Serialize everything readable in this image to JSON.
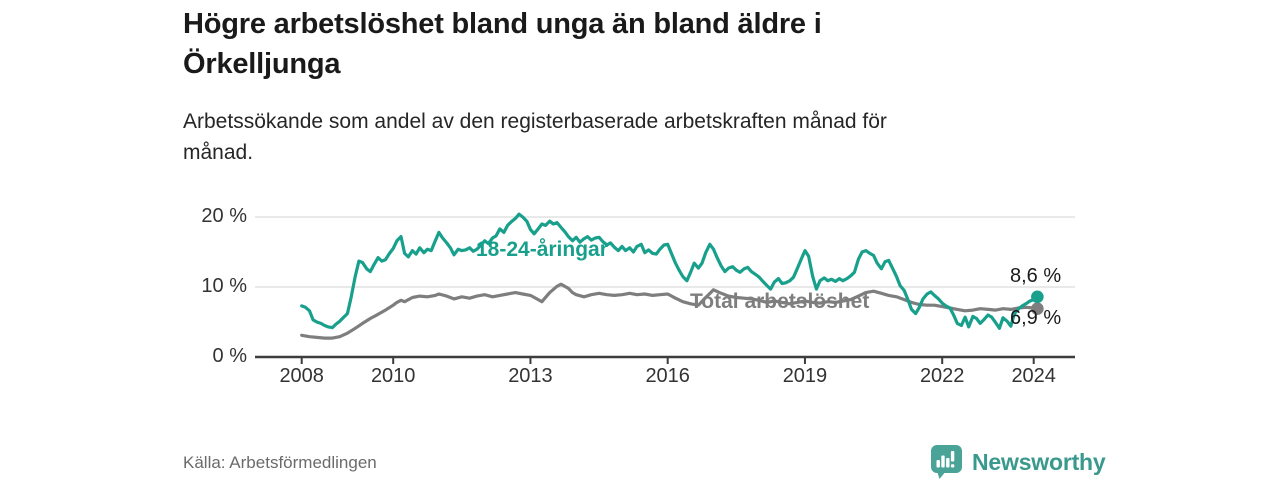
{
  "header": {
    "title_line1": "Högre arbetslöshet bland unga än bland äldre i",
    "title_line2": "Örkelljunga",
    "subtitle_line1": "Arbetssökande som andel av den registerbaserade arbetskraften månad för",
    "subtitle_line2": "månad."
  },
  "footer": {
    "source": "Källa: Arbetsförmedlingen",
    "brand": "Newsworthy",
    "brand_color": "#39998c"
  },
  "colors": {
    "young_line": "#18a08d",
    "total_line": "#7e7e7e",
    "grid": "#dcdcdc",
    "axis": "#3d3d3d",
    "text_dark": "#1a1a1a"
  },
  "chart_data": {
    "type": "line",
    "title": "Högre arbetslöshet bland unga än bland äldre i Örkelljunga",
    "subtitle": "Arbetssökande som andel av den registerbaserade arbetskraften månad för månad.",
    "xlabel": "",
    "ylabel": "",
    "x_unit": "year (monthly observations)",
    "xlim": [
      2007.55,
      2024.95
    ],
    "ylim": [
      0,
      21.4
    ],
    "x_ticks": [
      2008,
      2010,
      2013,
      2016,
      2019,
      2022,
      2024
    ],
    "y_ticks": [
      0,
      10,
      20
    ],
    "y_tick_labels": [
      "0 %",
      "10 %",
      "20 %"
    ],
    "grid": "horizontal",
    "legend": "inline-labels-on-lines",
    "series": [
      {
        "name": "18-24-åringar",
        "color": "#18a08d",
        "end_label": "8,6 %",
        "last_value": 8.6,
        "points": [
          [
            2008.0,
            7.3
          ],
          [
            2008.08,
            7.1
          ],
          [
            2008.17,
            6.6
          ],
          [
            2008.25,
            5.3
          ],
          [
            2008.33,
            5.0
          ],
          [
            2008.42,
            4.8
          ],
          [
            2008.5,
            4.5
          ],
          [
            2008.58,
            4.3
          ],
          [
            2008.67,
            4.2
          ],
          [
            2008.75,
            4.7
          ],
          [
            2008.83,
            5.1
          ],
          [
            2008.92,
            5.7
          ],
          [
            2009.0,
            6.2
          ],
          [
            2009.08,
            8.5
          ],
          [
            2009.17,
            11.5
          ],
          [
            2009.25,
            13.7
          ],
          [
            2009.33,
            13.5
          ],
          [
            2009.42,
            12.6
          ],
          [
            2009.5,
            12.2
          ],
          [
            2009.58,
            13.2
          ],
          [
            2009.67,
            14.2
          ],
          [
            2009.75,
            13.7
          ],
          [
            2009.83,
            13.9
          ],
          [
            2009.92,
            14.8
          ],
          [
            2010.0,
            15.5
          ],
          [
            2010.08,
            16.6
          ],
          [
            2010.17,
            17.2
          ],
          [
            2010.25,
            14.8
          ],
          [
            2010.33,
            14.3
          ],
          [
            2010.42,
            15.2
          ],
          [
            2010.5,
            14.7
          ],
          [
            2010.58,
            15.6
          ],
          [
            2010.67,
            14.9
          ],
          [
            2010.75,
            15.4
          ],
          [
            2010.83,
            15.2
          ],
          [
            2010.92,
            16.6
          ],
          [
            2011.0,
            17.8
          ],
          [
            2011.08,
            17.0
          ],
          [
            2011.17,
            16.3
          ],
          [
            2011.25,
            15.6
          ],
          [
            2011.33,
            14.6
          ],
          [
            2011.42,
            15.4
          ],
          [
            2011.5,
            15.2
          ],
          [
            2011.58,
            15.3
          ],
          [
            2011.67,
            15.6
          ],
          [
            2011.75,
            15.1
          ],
          [
            2011.83,
            15.4
          ],
          [
            2011.92,
            16.0
          ],
          [
            2012.0,
            16.6
          ],
          [
            2012.08,
            16.2
          ],
          [
            2012.17,
            17.0
          ],
          [
            2012.25,
            17.3
          ],
          [
            2012.33,
            18.3
          ],
          [
            2012.42,
            17.8
          ],
          [
            2012.5,
            18.8
          ],
          [
            2012.58,
            19.3
          ],
          [
            2012.67,
            19.8
          ],
          [
            2012.75,
            20.4
          ],
          [
            2012.83,
            20.0
          ],
          [
            2012.92,
            19.4
          ],
          [
            2013.0,
            18.2
          ],
          [
            2013.08,
            17.6
          ],
          [
            2013.17,
            18.3
          ],
          [
            2013.25,
            19.0
          ],
          [
            2013.33,
            18.8
          ],
          [
            2013.42,
            19.4
          ],
          [
            2013.5,
            19.0
          ],
          [
            2013.58,
            19.2
          ],
          [
            2013.67,
            18.5
          ],
          [
            2013.75,
            17.9
          ],
          [
            2013.83,
            17.2
          ],
          [
            2013.92,
            16.6
          ],
          [
            2014.0,
            17.1
          ],
          [
            2014.08,
            16.4
          ],
          [
            2014.17,
            16.9
          ],
          [
            2014.25,
            17.2
          ],
          [
            2014.33,
            16.7
          ],
          [
            2014.42,
            17.0
          ],
          [
            2014.5,
            17.1
          ],
          [
            2014.58,
            16.5
          ],
          [
            2014.67,
            16.0
          ],
          [
            2014.75,
            16.3
          ],
          [
            2014.83,
            15.7
          ],
          [
            2014.92,
            15.2
          ],
          [
            2015.0,
            15.8
          ],
          [
            2015.08,
            15.2
          ],
          [
            2015.17,
            15.6
          ],
          [
            2015.25,
            15.0
          ],
          [
            2015.33,
            15.8
          ],
          [
            2015.42,
            16.1
          ],
          [
            2015.5,
            14.9
          ],
          [
            2015.58,
            15.3
          ],
          [
            2015.67,
            14.8
          ],
          [
            2015.75,
            14.7
          ],
          [
            2015.83,
            15.4
          ],
          [
            2015.92,
            16.0
          ],
          [
            2016.0,
            16.1
          ],
          [
            2016.08,
            14.8
          ],
          [
            2016.17,
            13.4
          ],
          [
            2016.25,
            12.4
          ],
          [
            2016.33,
            11.5
          ],
          [
            2016.42,
            10.9
          ],
          [
            2016.5,
            12.1
          ],
          [
            2016.58,
            13.4
          ],
          [
            2016.67,
            12.7
          ],
          [
            2016.75,
            13.4
          ],
          [
            2016.83,
            14.9
          ],
          [
            2016.92,
            16.1
          ],
          [
            2017.0,
            15.4
          ],
          [
            2017.08,
            14.2
          ],
          [
            2017.17,
            13.0
          ],
          [
            2017.25,
            12.2
          ],
          [
            2017.33,
            12.7
          ],
          [
            2017.42,
            12.9
          ],
          [
            2017.5,
            12.4
          ],
          [
            2017.58,
            12.1
          ],
          [
            2017.67,
            12.6
          ],
          [
            2017.75,
            12.8
          ],
          [
            2017.83,
            12.2
          ],
          [
            2017.92,
            11.8
          ],
          [
            2018.0,
            11.4
          ],
          [
            2018.08,
            10.8
          ],
          [
            2018.17,
            10.2
          ],
          [
            2018.25,
            9.7
          ],
          [
            2018.33,
            10.7
          ],
          [
            2018.42,
            11.2
          ],
          [
            2018.5,
            10.5
          ],
          [
            2018.58,
            10.6
          ],
          [
            2018.67,
            10.9
          ],
          [
            2018.75,
            11.4
          ],
          [
            2018.83,
            12.6
          ],
          [
            2018.92,
            14.0
          ],
          [
            2019.0,
            15.2
          ],
          [
            2019.08,
            14.4
          ],
          [
            2019.17,
            11.5
          ],
          [
            2019.25,
            9.7
          ],
          [
            2019.33,
            10.9
          ],
          [
            2019.42,
            11.3
          ],
          [
            2019.5,
            10.9
          ],
          [
            2019.58,
            11.1
          ],
          [
            2019.67,
            10.8
          ],
          [
            2019.75,
            11.2
          ],
          [
            2019.83,
            10.9
          ],
          [
            2019.92,
            11.2
          ],
          [
            2020.0,
            11.6
          ],
          [
            2020.08,
            12.1
          ],
          [
            2020.17,
            14.0
          ],
          [
            2020.25,
            15.0
          ],
          [
            2020.33,
            15.2
          ],
          [
            2020.42,
            14.8
          ],
          [
            2020.5,
            14.5
          ],
          [
            2020.58,
            13.4
          ],
          [
            2020.67,
            12.6
          ],
          [
            2020.75,
            13.6
          ],
          [
            2020.83,
            13.8
          ],
          [
            2020.92,
            12.6
          ],
          [
            2021.0,
            11.5
          ],
          [
            2021.08,
            10.2
          ],
          [
            2021.17,
            9.5
          ],
          [
            2021.25,
            8.2
          ],
          [
            2021.33,
            6.8
          ],
          [
            2021.42,
            6.2
          ],
          [
            2021.5,
            7.1
          ],
          [
            2021.58,
            8.3
          ],
          [
            2021.67,
            9.0
          ],
          [
            2021.75,
            9.3
          ],
          [
            2021.83,
            8.8
          ],
          [
            2021.92,
            8.3
          ],
          [
            2022.0,
            7.7
          ],
          [
            2022.08,
            7.3
          ],
          [
            2022.17,
            7.0
          ],
          [
            2022.25,
            6.0
          ],
          [
            2022.33,
            4.8
          ],
          [
            2022.42,
            4.5
          ],
          [
            2022.5,
            5.7
          ],
          [
            2022.58,
            4.3
          ],
          [
            2022.67,
            5.8
          ],
          [
            2022.75,
            5.5
          ],
          [
            2022.83,
            4.8
          ],
          [
            2022.92,
            5.4
          ],
          [
            2023.0,
            6.0
          ],
          [
            2023.08,
            5.7
          ],
          [
            2023.17,
            4.9
          ],
          [
            2023.25,
            4.1
          ],
          [
            2023.33,
            5.6
          ],
          [
            2023.42,
            5.1
          ],
          [
            2023.5,
            4.4
          ],
          [
            2023.58,
            6.2
          ],
          [
            2023.67,
            6.9
          ],
          [
            2023.75,
            7.3
          ],
          [
            2023.83,
            7.6
          ],
          [
            2023.92,
            8.0
          ],
          [
            2024.0,
            8.2
          ],
          [
            2024.08,
            8.6
          ]
        ]
      },
      {
        "name": "Total arbetslöshet",
        "color": "#7e7e7e",
        "end_label": "6,9 %",
        "last_value": 6.9,
        "points": [
          [
            2008.0,
            3.1
          ],
          [
            2008.17,
            2.9
          ],
          [
            2008.33,
            2.8
          ],
          [
            2008.5,
            2.7
          ],
          [
            2008.67,
            2.7
          ],
          [
            2008.83,
            2.9
          ],
          [
            2009.0,
            3.4
          ],
          [
            2009.17,
            4.1
          ],
          [
            2009.33,
            4.8
          ],
          [
            2009.5,
            5.5
          ],
          [
            2009.67,
            6.1
          ],
          [
            2009.83,
            6.7
          ],
          [
            2010.0,
            7.4
          ],
          [
            2010.08,
            7.8
          ],
          [
            2010.17,
            8.1
          ],
          [
            2010.25,
            7.9
          ],
          [
            2010.42,
            8.5
          ],
          [
            2010.58,
            8.7
          ],
          [
            2010.75,
            8.6
          ],
          [
            2010.92,
            8.8
          ],
          [
            2011.0,
            9.0
          ],
          [
            2011.17,
            8.7
          ],
          [
            2011.33,
            8.3
          ],
          [
            2011.5,
            8.6
          ],
          [
            2011.67,
            8.4
          ],
          [
            2011.83,
            8.7
          ],
          [
            2012.0,
            8.9
          ],
          [
            2012.17,
            8.6
          ],
          [
            2012.33,
            8.8
          ],
          [
            2012.5,
            9.0
          ],
          [
            2012.67,
            9.2
          ],
          [
            2012.83,
            9.0
          ],
          [
            2013.0,
            8.8
          ],
          [
            2013.17,
            8.2
          ],
          [
            2013.25,
            7.9
          ],
          [
            2013.42,
            9.2
          ],
          [
            2013.58,
            10.1
          ],
          [
            2013.67,
            10.4
          ],
          [
            2013.83,
            9.8
          ],
          [
            2013.92,
            9.2
          ],
          [
            2014.0,
            8.9
          ],
          [
            2014.17,
            8.6
          ],
          [
            2014.33,
            8.9
          ],
          [
            2014.5,
            9.1
          ],
          [
            2014.67,
            8.9
          ],
          [
            2014.83,
            8.8
          ],
          [
            2015.0,
            8.9
          ],
          [
            2015.17,
            9.1
          ],
          [
            2015.33,
            8.9
          ],
          [
            2015.5,
            9.0
          ],
          [
            2015.67,
            8.8
          ],
          [
            2015.83,
            8.9
          ],
          [
            2016.0,
            9.0
          ],
          [
            2016.17,
            8.4
          ],
          [
            2016.33,
            7.9
          ],
          [
            2016.5,
            7.6
          ],
          [
            2016.67,
            7.4
          ],
          [
            2016.83,
            8.5
          ],
          [
            2017.0,
            9.6
          ],
          [
            2017.17,
            9.1
          ],
          [
            2017.33,
            8.7
          ],
          [
            2017.5,
            8.5
          ],
          [
            2017.67,
            8.4
          ],
          [
            2017.83,
            8.3
          ],
          [
            2018.0,
            8.1
          ],
          [
            2018.17,
            7.8
          ],
          [
            2018.33,
            8.0
          ],
          [
            2018.5,
            7.8
          ],
          [
            2018.67,
            7.6
          ],
          [
            2018.83,
            7.8
          ],
          [
            2019.0,
            8.0
          ],
          [
            2019.17,
            7.8
          ],
          [
            2019.33,
            7.7
          ],
          [
            2019.5,
            7.9
          ],
          [
            2019.67,
            7.8
          ],
          [
            2019.83,
            8.0
          ],
          [
            2020.0,
            8.2
          ],
          [
            2020.17,
            8.7
          ],
          [
            2020.33,
            9.2
          ],
          [
            2020.5,
            9.4
          ],
          [
            2020.67,
            9.1
          ],
          [
            2020.83,
            8.8
          ],
          [
            2021.0,
            8.6
          ],
          [
            2021.17,
            8.2
          ],
          [
            2021.33,
            7.8
          ],
          [
            2021.5,
            7.5
          ],
          [
            2021.67,
            7.4
          ],
          [
            2021.83,
            7.4
          ],
          [
            2022.0,
            7.2
          ],
          [
            2022.17,
            7.0
          ],
          [
            2022.33,
            6.8
          ],
          [
            2022.5,
            6.6
          ],
          [
            2022.67,
            6.7
          ],
          [
            2022.83,
            6.9
          ],
          [
            2023.0,
            6.8
          ],
          [
            2023.17,
            6.7
          ],
          [
            2023.33,
            6.9
          ],
          [
            2023.5,
            6.8
          ],
          [
            2023.67,
            7.0
          ],
          [
            2023.83,
            7.1
          ],
          [
            2024.0,
            7.0
          ],
          [
            2024.08,
            6.9
          ]
        ]
      }
    ]
  }
}
